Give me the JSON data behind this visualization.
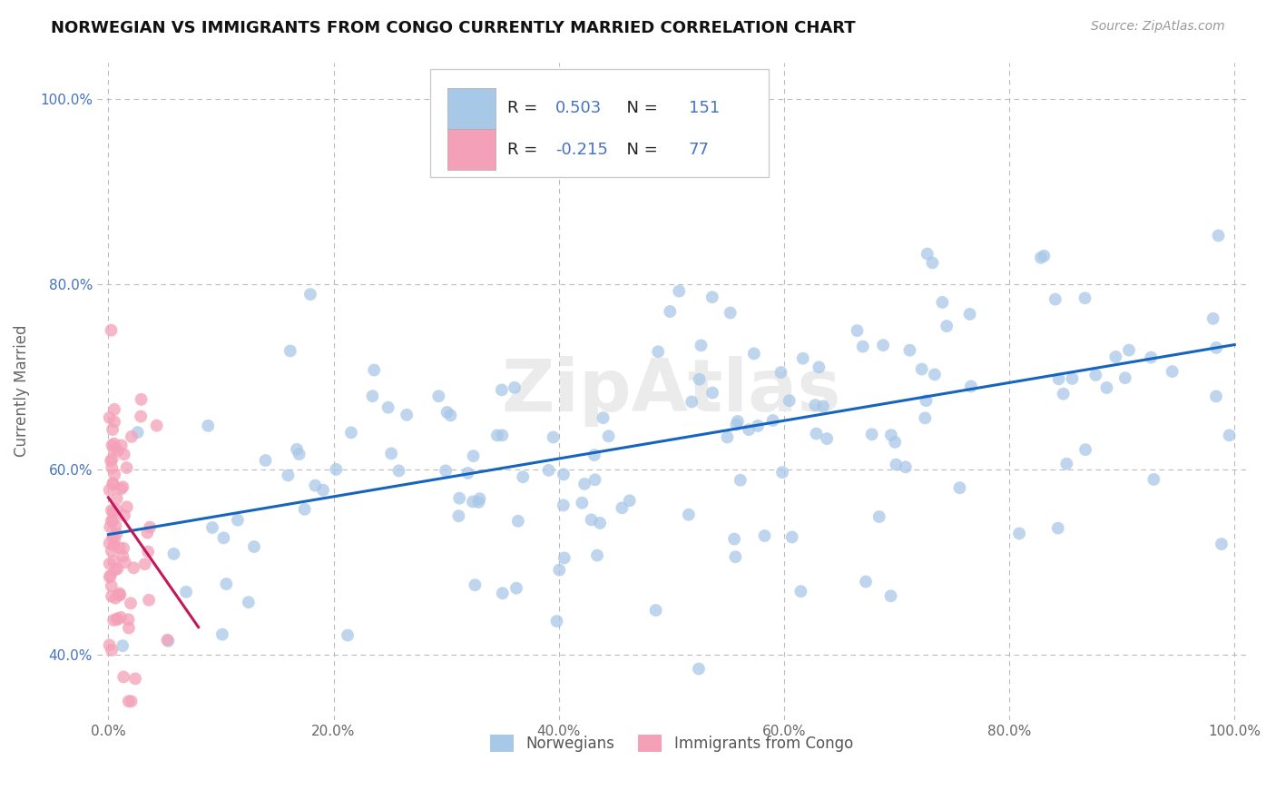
{
  "title": "NORWEGIAN VS IMMIGRANTS FROM CONGO CURRENTLY MARRIED CORRELATION CHART",
  "source_text": "Source: ZipAtlas.com",
  "ylabel": "Currently Married",
  "xlim": [
    -0.01,
    1.01
  ],
  "ylim": [
    0.33,
    1.04
  ],
  "xticks": [
    0.0,
    0.2,
    0.4,
    0.6,
    0.8,
    1.0
  ],
  "xticklabels": [
    "0.0%",
    "20.0%",
    "40.0%",
    "60.0%",
    "80.0%",
    "100.0%"
  ],
  "yticks": [
    0.4,
    0.6,
    0.8,
    1.0
  ],
  "yticklabels": [
    "40.0%",
    "60.0%",
    "80.0%",
    "100.0%"
  ],
  "legend_labels": [
    "Norwegians",
    "Immigrants from Congo"
  ],
  "blue_color": "#A8C8E8",
  "pink_color": "#F4A0B8",
  "blue_line_color": "#1565C0",
  "pink_line_color": "#C2185B",
  "blue_R": 0.503,
  "blue_N": 151,
  "pink_R": -0.215,
  "pink_N": 77,
  "blue_line_x0": 0.0,
  "blue_line_y0": 0.53,
  "blue_line_x1": 1.0,
  "blue_line_y1": 0.735,
  "pink_line_x0": 0.0,
  "pink_line_y0": 0.57,
  "pink_line_x1": 0.08,
  "pink_line_y1": 0.43,
  "background_color": "#FFFFFF",
  "watermark_color": "#EBEBEB",
  "watermark_text": "ZipAtlas"
}
